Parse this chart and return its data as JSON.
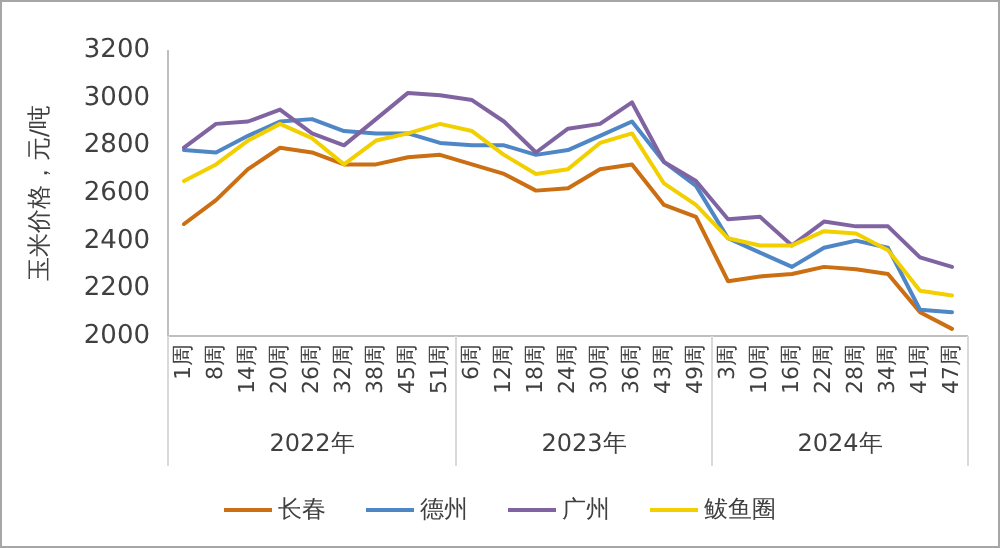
{
  "chart_data": {
    "type": "line",
    "ylabel": "玉米价格，元/吨",
    "ylim": [
      2000,
      3200
    ],
    "yticks": [
      2000,
      2200,
      2400,
      2600,
      2800,
      3000,
      3200
    ],
    "categories": [
      "1周",
      "8周",
      "14周",
      "20周",
      "26周",
      "32周",
      "38周",
      "45周",
      "51周",
      "6周",
      "12周",
      "18周",
      "24周",
      "30周",
      "36周",
      "43周",
      "49周",
      "3周",
      "10周",
      "16周",
      "22周",
      "28周",
      "34周",
      "41周",
      "47周"
    ],
    "annotations": [
      "2022年",
      "2023年",
      "2024年"
    ],
    "legend": "bottom",
    "series": [
      {
        "name": "长春",
        "color": "#cc6e12",
        "values": [
          2470,
          2570,
          2700,
          2790,
          2770,
          2720,
          2720,
          2750,
          2760,
          2720,
          2680,
          2610,
          2620,
          2700,
          2720,
          2550,
          2500,
          2230,
          2250,
          2260,
          2290,
          2280,
          2260,
          2100,
          2030
        ]
      },
      {
        "name": "德州",
        "color": "#4e86c6",
        "values": [
          2780,
          2770,
          2840,
          2900,
          2910,
          2860,
          2850,
          2850,
          2810,
          2800,
          2800,
          2760,
          2780,
          2840,
          2900,
          2730,
          2630,
          2410,
          2350,
          2290,
          2370,
          2400,
          2370,
          2110,
          2100
        ]
      },
      {
        "name": "广州",
        "color": "#8064a2",
        "values": [
          2790,
          2890,
          2900,
          2950,
          2850,
          2800,
          2910,
          3020,
          3010,
          2990,
          2900,
          2770,
          2870,
          2890,
          2980,
          2730,
          2650,
          2490,
          2500,
          2380,
          2480,
          2460,
          2460,
          2330,
          2290
        ]
      },
      {
        "name": "鲅鱼圈",
        "color": "#f2d000",
        "values": [
          2650,
          2720,
          2820,
          2890,
          2830,
          2720,
          2820,
          2850,
          2890,
          2860,
          2760,
          2680,
          2700,
          2810,
          2850,
          2640,
          2550,
          2410,
          2380,
          2380,
          2440,
          2430,
          2360,
          2190,
          2170
        ]
      }
    ]
  }
}
